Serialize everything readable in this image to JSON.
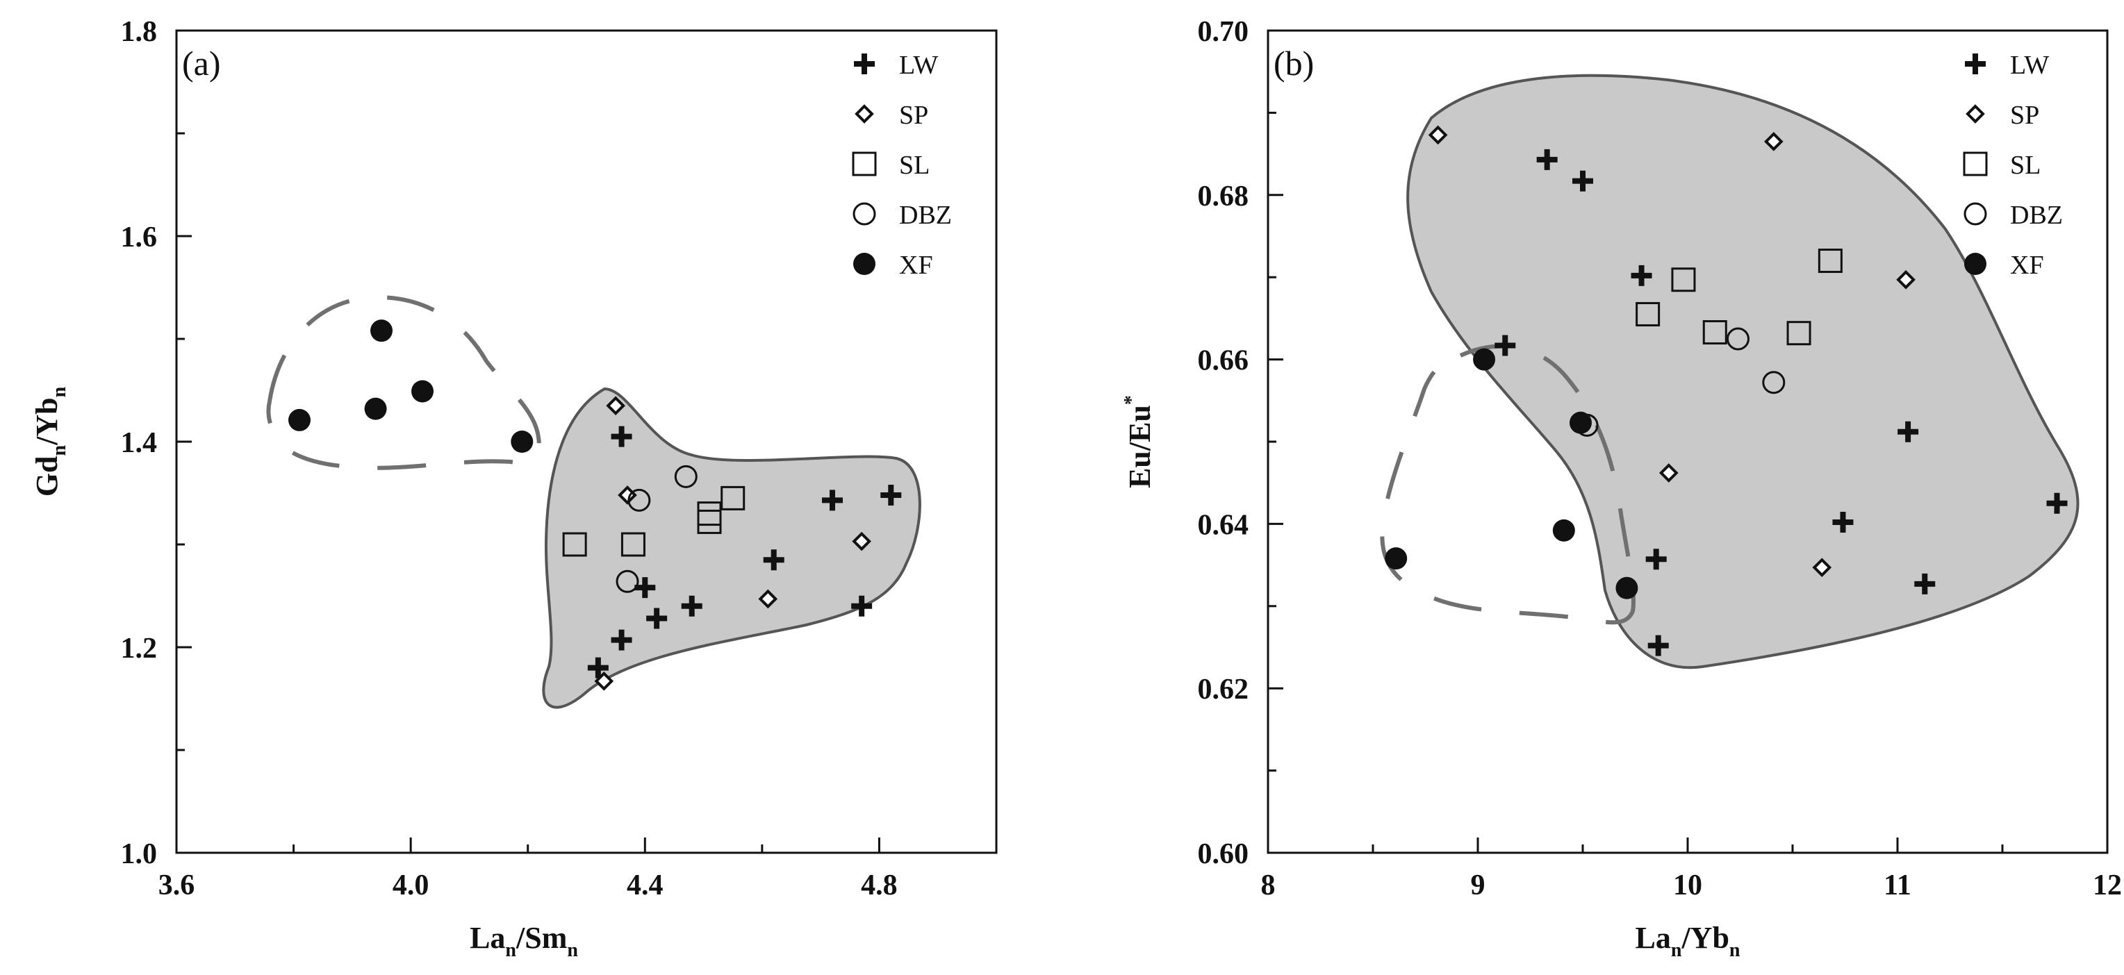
{
  "chart_data": [
    {
      "panel_label": "(a)",
      "type": "scatter",
      "xlabel": {
        "base1": "La",
        "sub1": "n",
        "sep": "/Sm",
        "sub2": "n"
      },
      "ylabel": {
        "base1": "Gd",
        "sub1": "n",
        "sep": "/Yb",
        "sub2": "n"
      },
      "xlim": [
        3.6,
        5.0
      ],
      "ylim": [
        1.0,
        1.8
      ],
      "xticks": [
        3.6,
        4.0,
        4.4,
        4.8
      ],
      "xtick_labels": [
        "3.6",
        "4.0",
        "4.4",
        "4.8"
      ],
      "yticks": [
        1.0,
        1.2,
        1.4,
        1.6,
        1.8
      ],
      "ytick_labels": [
        "1.0",
        "1.2",
        "1.4",
        "1.6",
        "1.8"
      ],
      "legend_position": "top-right",
      "series": [
        {
          "name": "LW",
          "marker": "plus",
          "points": [
            [
              4.36,
              1.405
            ],
            [
              4.72,
              1.343
            ],
            [
              4.82,
              1.348
            ],
            [
              4.62,
              1.285
            ],
            [
              4.4,
              1.258
            ],
            [
              4.42,
              1.228
            ],
            [
              4.48,
              1.24
            ],
            [
              4.77,
              1.24
            ],
            [
              4.36,
              1.207
            ],
            [
              4.32,
              1.18
            ]
          ]
        },
        {
          "name": "SP",
          "marker": "diamond",
          "points": [
            [
              4.35,
              1.435
            ],
            [
              4.37,
              1.348
            ],
            [
              4.77,
              1.303
            ],
            [
              4.61,
              1.247
            ],
            [
              4.33,
              1.167
            ]
          ]
        },
        {
          "name": "SL",
          "marker": "square",
          "points": [
            [
              4.28,
              1.3
            ],
            [
              4.38,
              1.3
            ],
            [
              4.51,
              1.33
            ],
            [
              4.51,
              1.322
            ],
            [
              4.55,
              1.345
            ]
          ]
        },
        {
          "name": "DBZ",
          "marker": "circle",
          "points": [
            [
              4.47,
              1.366
            ],
            [
              4.39,
              1.343
            ],
            [
              4.37,
              1.264
            ]
          ]
        },
        {
          "name": "XF",
          "marker": "dot",
          "points": [
            [
              3.95,
              1.508
            ],
            [
              3.81,
              1.421
            ],
            [
              3.94,
              1.432
            ],
            [
              4.02,
              1.449
            ],
            [
              4.19,
              1.4
            ]
          ]
        }
      ],
      "fields": [
        {
          "style": "shaded-solid",
          "encloses": [
            "LW",
            "SP",
            "SL",
            "DBZ"
          ]
        },
        {
          "style": "dashed-outline",
          "encloses": [
            "XF"
          ]
        }
      ]
    },
    {
      "panel_label": "(b)",
      "type": "scatter",
      "xlabel": {
        "base1": "La",
        "sub1": "n",
        "sep": "/Yb",
        "sub2": "n"
      },
      "ylabel": {
        "base1": "Eu/Eu",
        "sup": "*"
      },
      "xlim": [
        8,
        12
      ],
      "ylim": [
        0.6,
        0.7
      ],
      "xticks": [
        8,
        9,
        10,
        11,
        12
      ],
      "xtick_labels": [
        "8",
        "9",
        "10",
        "11",
        "12"
      ],
      "yticks": [
        0.6,
        0.62,
        0.64,
        0.66,
        0.68,
        0.7
      ],
      "ytick_labels": [
        "0.60",
        "0.62",
        "0.64",
        "0.66",
        "0.68",
        "0.70"
      ],
      "legend_position": "top-right",
      "series": [
        {
          "name": "LW",
          "marker": "plus",
          "points": [
            [
              9.33,
              0.6843
            ],
            [
              9.5,
              0.6817
            ],
            [
              9.78,
              0.6702
            ],
            [
              9.13,
              0.6617
            ],
            [
              11.05,
              0.6512
            ],
            [
              11.76,
              0.6425
            ],
            [
              10.74,
              0.6402
            ],
            [
              9.85,
              0.6357
            ],
            [
              11.13,
              0.6327
            ],
            [
              9.86,
              0.6252
            ]
          ]
        },
        {
          "name": "SP",
          "marker": "diamond",
          "points": [
            [
              8.81,
              0.6873
            ],
            [
              10.41,
              0.6865
            ],
            [
              11.04,
              0.6697
            ],
            [
              9.91,
              0.6462
            ],
            [
              10.64,
              0.6347
            ]
          ]
        },
        {
          "name": "SL",
          "marker": "square",
          "points": [
            [
              9.98,
              0.6697
            ],
            [
              10.68,
              0.672
            ],
            [
              9.81,
              0.6655
            ],
            [
              10.13,
              0.6633
            ],
            [
              10.53,
              0.6632
            ]
          ]
        },
        {
          "name": "DBZ",
          "marker": "circle",
          "points": [
            [
              10.24,
              0.6625
            ],
            [
              10.41,
              0.6572
            ],
            [
              9.52,
              0.652
            ]
          ]
        },
        {
          "name": "XF",
          "marker": "dot",
          "points": [
            [
              9.03,
              0.66
            ],
            [
              9.49,
              0.6523
            ],
            [
              8.61,
              0.6358
            ],
            [
              9.41,
              0.6392
            ],
            [
              9.71,
              0.6322
            ]
          ]
        }
      ],
      "fields": [
        {
          "style": "shaded-solid",
          "encloses": [
            "LW",
            "SP",
            "SL",
            "DBZ"
          ]
        },
        {
          "style": "dashed-outline",
          "encloses": [
            "XF"
          ]
        }
      ]
    }
  ]
}
